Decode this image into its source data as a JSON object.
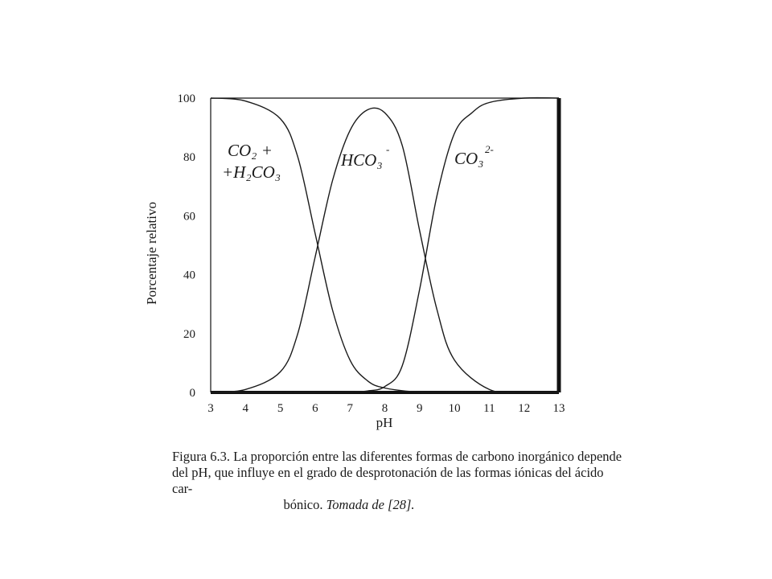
{
  "chart_data": {
    "type": "line",
    "xlabel": "pH",
    "ylabel": "Porcentaje relativo",
    "xlim": [
      3,
      13
    ],
    "ylim": [
      0,
      100
    ],
    "x_ticks": [
      3,
      4,
      5,
      6,
      7,
      8,
      9,
      10,
      11,
      12,
      13
    ],
    "y_ticks": [
      0,
      20,
      40,
      60,
      80,
      100
    ],
    "grid": false,
    "series": [
      {
        "name": "CO2 + H2CO3",
        "x": [
          3,
          4,
          5,
          5.5,
          6,
          6.5,
          7,
          7.5,
          8,
          9,
          10,
          11,
          12,
          13
        ],
        "y": [
          100,
          99,
          93,
          80,
          54,
          28,
          11,
          4,
          1.5,
          0.1,
          0,
          0,
          0,
          0
        ]
      },
      {
        "name": "HCO3-",
        "x": [
          3,
          4,
          5,
          5.5,
          6,
          6.5,
          7,
          7.5,
          8,
          8.5,
          9,
          9.5,
          10,
          11,
          12,
          13
        ],
        "y": [
          0,
          1,
          7,
          20,
          46,
          72,
          89,
          96,
          95,
          84,
          55,
          28,
          11,
          1,
          0,
          0
        ]
      },
      {
        "name": "CO3 2-",
        "x": [
          3,
          6,
          7,
          7.5,
          8,
          8.5,
          9,
          9.5,
          10,
          10.5,
          11,
          12,
          13
        ],
        "y": [
          0,
          0,
          0.2,
          0.5,
          2,
          9,
          35,
          67,
          88,
          95,
          98.5,
          100,
          100
        ]
      }
    ],
    "annotations": {
      "co2_line1": "CO₂ +",
      "co2_line2": "+H₂CO₃",
      "hco3": "HCO₃",
      "hco3_charge": "-",
      "co3": "CO₃",
      "co3_charge": "2-"
    }
  },
  "caption": {
    "line1": "Figura 6.3. La proporción entre las diferentes formas de carbono inorgánico depende",
    "line2": "del pH, que influye en el grado de desprotonación de las formas iónicas del ácido car-",
    "line3": "bónico.",
    "source": "Tomada de [28]."
  }
}
